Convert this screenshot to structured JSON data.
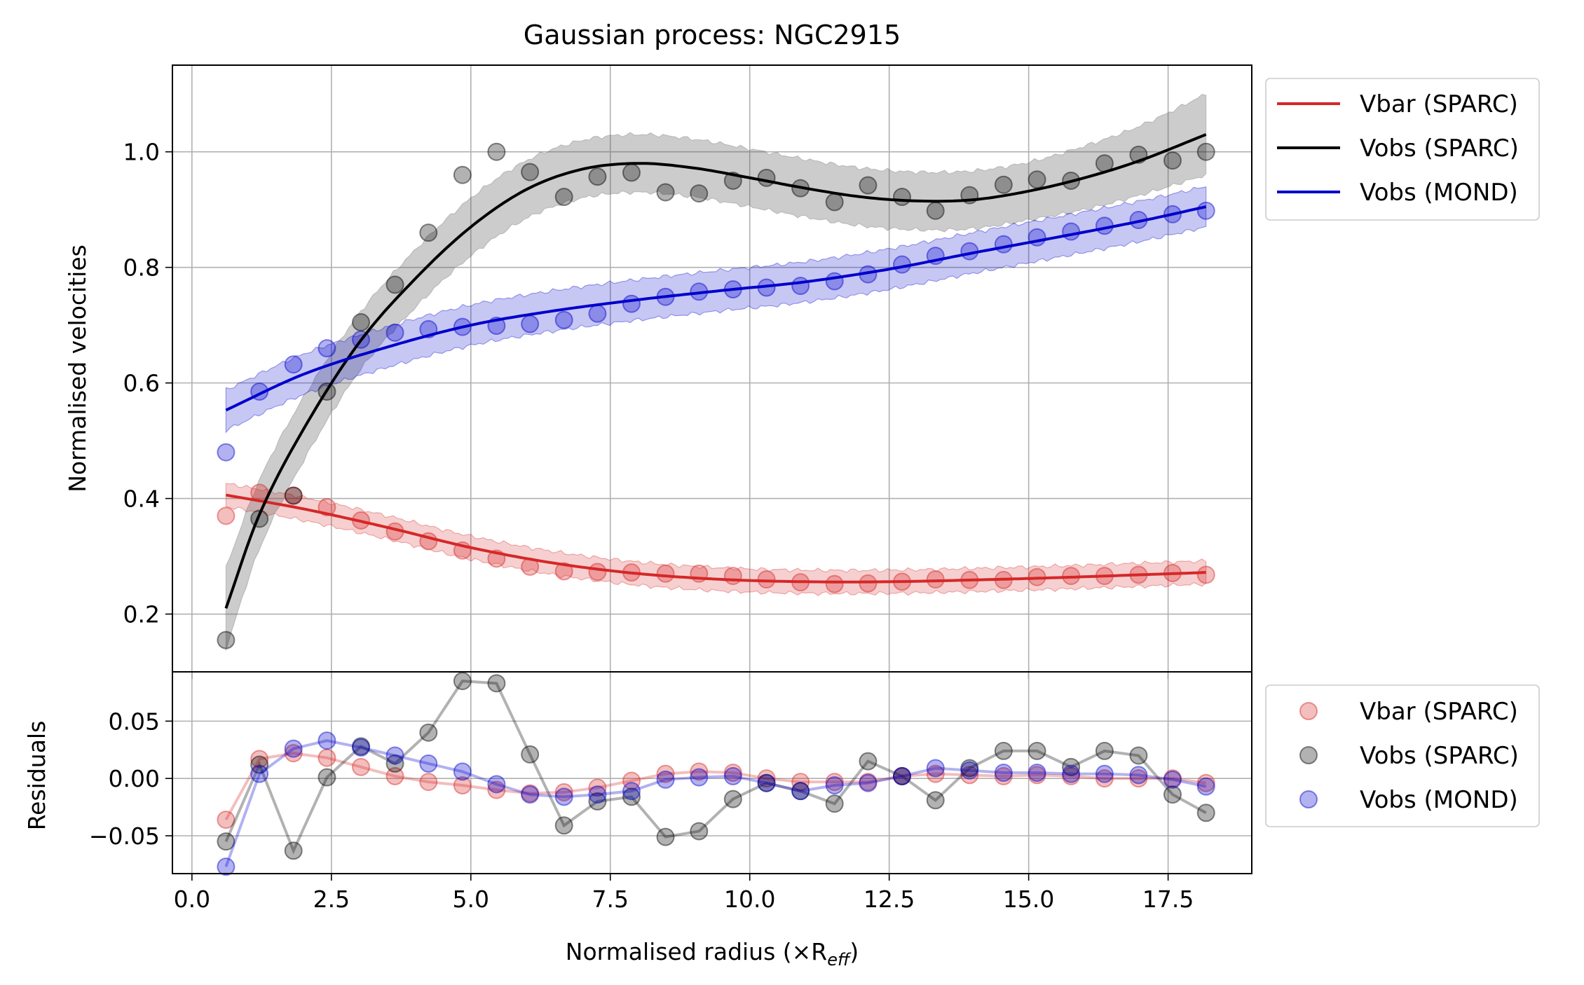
{
  "chart_data": [
    {
      "type": "line",
      "title": "Gaussian process: NGC2915",
      "xlabel": "",
      "ylabel": "Normalised velocities",
      "xlim": [
        -0.35,
        19.0
      ],
      "ylim": [
        0.1,
        1.15
      ],
      "grid": true,
      "legend_placement": "outside-top-right",
      "x_ticks": [
        0.0,
        2.5,
        5.0,
        7.5,
        10.0,
        12.5,
        15.0,
        17.5
      ],
      "y_ticks": [
        0.2,
        0.4,
        0.6,
        0.8,
        1.0
      ],
      "y_tick_labels": [
        "0.2",
        "0.4",
        "0.6",
        "0.8",
        "1.0"
      ],
      "legend": [
        "Vbar (SPARC)",
        "Vobs (SPARC)",
        "Vobs (MOND)"
      ],
      "x": [
        0.61,
        1.21,
        1.82,
        2.42,
        3.03,
        3.64,
        4.24,
        4.85,
        5.46,
        6.06,
        6.67,
        7.27,
        7.88,
        8.49,
        9.09,
        9.7,
        10.3,
        10.91,
        11.52,
        12.12,
        12.73,
        13.33,
        13.94,
        14.55,
        15.15,
        15.76,
        16.36,
        16.97,
        17.58,
        18.18
      ],
      "series": [
        {
          "name": "Vbar (SPARC)",
          "color": "#d62728",
          "points": [
            0.37,
            0.41,
            0.405,
            0.385,
            0.362,
            0.343,
            0.326,
            0.31,
            0.296,
            0.282,
            0.274,
            0.273,
            0.272,
            0.27,
            0.27,
            0.266,
            0.26,
            0.255,
            0.252,
            0.253,
            0.256,
            0.26,
            0.259,
            0.259,
            0.264,
            0.266,
            0.266,
            0.268,
            0.271,
            0.268
          ],
          "curve_x": [
            0.61,
            2.0,
            3.5,
            5.0,
            6.5,
            8.0,
            9.5,
            11.0,
            12.5,
            14.0,
            15.5,
            17.0,
            18.18
          ],
          "curve_y": [
            0.406,
            0.382,
            0.35,
            0.315,
            0.288,
            0.27,
            0.26,
            0.256,
            0.256,
            0.259,
            0.263,
            0.268,
            0.272
          ],
          "band_halfwidth": 0.02
        },
        {
          "name": "Vobs (SPARC)",
          "color": "#000000",
          "points": [
            0.155,
            0.365,
            0.405,
            0.585,
            0.705,
            0.77,
            0.86,
            0.96,
            1.0,
            0.965,
            0.922,
            0.957,
            0.964,
            0.93,
            0.928,
            0.95,
            0.955,
            0.937,
            0.913,
            0.942,
            0.922,
            0.898,
            0.925,
            0.943,
            0.952,
            0.95,
            0.98,
            0.995,
            0.985,
            1.0
          ],
          "curve_x": [
            0.61,
            1.2,
            2.0,
            3.0,
            4.0,
            5.0,
            6.0,
            7.0,
            8.0,
            9.0,
            10.0,
            11.0,
            12.0,
            13.0,
            14.0,
            15.0,
            16.0,
            17.0,
            18.18
          ],
          "curve_y": [
            0.21,
            0.37,
            0.52,
            0.67,
            0.78,
            0.87,
            0.935,
            0.97,
            0.98,
            0.972,
            0.955,
            0.937,
            0.922,
            0.915,
            0.917,
            0.932,
            0.955,
            0.985,
            1.03
          ],
          "band_halfwidth": [
            0.07,
            0.06,
            0.055,
            0.05,
            0.05,
            0.05,
            0.05,
            0.05,
            0.05,
            0.05,
            0.05,
            0.05,
            0.05,
            0.05,
            0.05,
            0.05,
            0.055,
            0.06,
            0.07
          ]
        },
        {
          "name": "Vobs (MOND)",
          "color": "#0000cc",
          "points": [
            0.48,
            0.585,
            0.632,
            0.66,
            0.675,
            0.687,
            0.693,
            0.697,
            0.699,
            0.702,
            0.709,
            0.72,
            0.737,
            0.749,
            0.758,
            0.762,
            0.765,
            0.768,
            0.776,
            0.788,
            0.805,
            0.82,
            0.828,
            0.84,
            0.852,
            0.862,
            0.872,
            0.882,
            0.892,
            0.898
          ],
          "curve_x": [
            0.61,
            2.0,
            3.5,
            5.0,
            6.5,
            8.0,
            9.5,
            11.0,
            12.5,
            14.0,
            15.5,
            17.0,
            18.18
          ],
          "curve_y": [
            0.553,
            0.615,
            0.662,
            0.7,
            0.725,
            0.744,
            0.76,
            0.775,
            0.797,
            0.825,
            0.852,
            0.88,
            0.905
          ],
          "band_halfwidth": 0.035
        }
      ]
    },
    {
      "type": "line",
      "title": "",
      "xlabel": "Normalised radius (×R",
      "xlabel_sub": "eff",
      "xlabel_close": ")",
      "ylabel": "Residuals",
      "xlim": [
        -0.35,
        19.0
      ],
      "ylim": [
        -0.083,
        0.093
      ],
      "grid": true,
      "legend_placement": "outside-right",
      "x_ticks": [
        0.0,
        2.5,
        5.0,
        7.5,
        10.0,
        12.5,
        15.0,
        17.5
      ],
      "x_tick_labels": [
        "0.0",
        "2.5",
        "5.0",
        "7.5",
        "10.0",
        "12.5",
        "15.0",
        "17.5"
      ],
      "y_ticks": [
        0.05,
        0.0,
        -0.05
      ],
      "y_tick_labels": [
        "0.05",
        "0.00",
        "−0.05"
      ],
      "legend": [
        "Vbar (SPARC)",
        "Vobs (SPARC)",
        "Vobs (MOND)"
      ],
      "x": [
        0.61,
        1.21,
        1.82,
        2.42,
        3.03,
        3.64,
        4.24,
        4.85,
        5.46,
        6.06,
        6.67,
        7.27,
        7.88,
        8.49,
        9.09,
        9.7,
        10.3,
        10.91,
        11.52,
        12.12,
        12.73,
        13.33,
        13.94,
        14.55,
        15.15,
        15.76,
        16.36,
        16.97,
        17.58,
        18.18
      ],
      "series": [
        {
          "name": "Vbar (SPARC)",
          "color": "#d62728",
          "values": [
            -0.036,
            0.017,
            0.022,
            0.018,
            0.01,
            0.002,
            -0.003,
            -0.006,
            -0.01,
            -0.013,
            -0.012,
            -0.008,
            -0.002,
            0.004,
            0.006,
            0.005,
            0.0,
            -0.003,
            -0.003,
            -0.003,
            0.002,
            0.004,
            0.003,
            0.002,
            0.003,
            0.002,
            0.0,
            0.0,
            0.0,
            -0.004
          ]
        },
        {
          "name": "Vobs (SPARC)",
          "color": "#000000",
          "values": [
            -0.055,
            0.012,
            -0.063,
            0.001,
            0.028,
            0.013,
            0.04,
            0.085,
            0.083,
            0.021,
            -0.041,
            -0.02,
            -0.016,
            -0.051,
            -0.046,
            -0.018,
            -0.004,
            -0.011,
            -0.022,
            0.015,
            0.002,
            -0.019,
            0.009,
            0.024,
            0.024,
            0.01,
            0.024,
            0.02,
            -0.014,
            -0.03
          ]
        },
        {
          "name": "Vobs (MOND)",
          "color": "#0000cc",
          "values": [
            -0.077,
            0.004,
            0.026,
            0.033,
            0.027,
            0.02,
            0.013,
            0.006,
            -0.005,
            -0.014,
            -0.016,
            -0.014,
            -0.011,
            -0.001,
            0.001,
            0.002,
            -0.004,
            -0.011,
            -0.006,
            -0.004,
            0.002,
            0.009,
            0.007,
            0.005,
            0.005,
            0.004,
            0.004,
            0.003,
            -0.001,
            -0.007
          ]
        }
      ]
    }
  ]
}
